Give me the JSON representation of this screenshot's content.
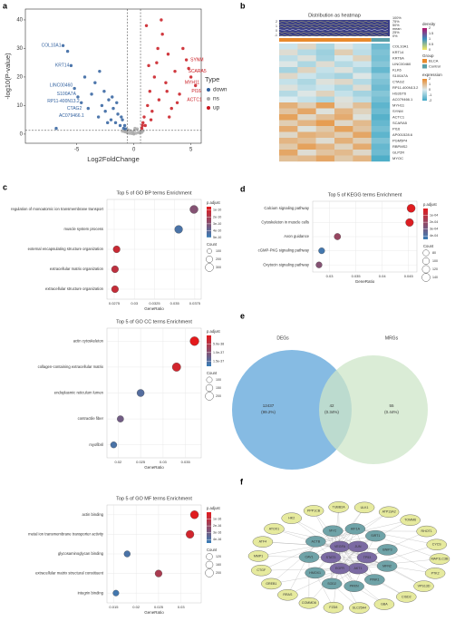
{
  "chart_data": [
    {
      "type": "scatter",
      "panel_label": "a",
      "xlabel": "Log2FoldChange",
      "ylabel": "-log10(P-value)",
      "xlim": [
        -9.5,
        5.9
      ],
      "ylim": [
        -3.2,
        43.8
      ],
      "xticks": [
        -5,
        0,
        5
      ],
      "yticks": [
        0,
        10,
        20,
        30,
        40
      ],
      "vlines": [
        -0.585,
        0.585
      ],
      "hline": 1.3,
      "legend_title": "Type",
      "series": [
        {
          "name": "down",
          "color": "#2f5f9e",
          "x": [
            -6.8,
            -6.2,
            -5.8,
            -5.5,
            -5.2,
            -4.9,
            -4.6,
            -4.3,
            -4.0,
            -3.7,
            -3.4,
            -3.1,
            -2.8,
            -2.5,
            -2.2,
            -2.0,
            -1.8,
            -1.6,
            -1.4,
            -1.2,
            -1.0,
            -0.9,
            -0.8,
            -0.7,
            -3.0,
            -2.6,
            -2.3,
            -1.9,
            -1.5,
            -1.1
          ],
          "values": [
            2,
            31,
            29,
            24,
            16,
            13,
            11,
            20,
            9,
            14,
            18,
            6,
            10,
            8,
            12,
            5,
            9,
            4,
            7,
            3,
            5,
            2,
            3,
            1.8,
            22,
            15,
            4,
            13,
            11,
            6
          ]
        },
        {
          "name": "ns",
          "color": "#aaaaaa",
          "x": [
            -1,
            -0.8,
            -0.6,
            -0.4,
            -0.2,
            0,
            0.2,
            0.4,
            0.6,
            0.8,
            -0.5,
            0.1,
            0.3,
            -0.3,
            0.5,
            -0.1,
            0.05,
            -0.7,
            0.7,
            0.0
          ],
          "values": [
            1,
            0.8,
            0.5,
            0.3,
            0.2,
            0.1,
            0.3,
            0.6,
            0.9,
            1.1,
            1.5,
            2,
            1.8,
            1.2,
            0.4,
            0.7,
            1.3,
            0.9,
            0.6,
            0.05
          ]
        },
        {
          "name": "up",
          "color": "#c8161d",
          "x": [
            0.7,
            0.8,
            0.9,
            1.0,
            1.2,
            1.4,
            1.6,
            1.8,
            2.0,
            2.2,
            2.5,
            2.8,
            3.0,
            3.3,
            3.6,
            4.0,
            4.3,
            4.6,
            5.0,
            5.4,
            1.1,
            1.5,
            2.4,
            3.1,
            3.8,
            0.75,
            1.3,
            2.1,
            2.9,
            4.8
          ],
          "values": [
            2,
            4,
            6,
            3,
            10,
            15,
            8,
            20,
            25,
            12,
            35,
            18,
            28,
            9,
            22,
            14,
            30,
            26,
            20,
            17,
            38,
            5,
            40,
            6,
            11,
            3,
            24,
            30,
            15,
            23
          ]
        }
      ],
      "annotations": [
        {
          "label": "COL10A1",
          "x": -6.2,
          "y": 31
        },
        {
          "label": "KRT14",
          "x": -5.5,
          "y": 24
        },
        {
          "label": "LINC00460",
          "x": -5.2,
          "y": 17
        },
        {
          "label": "S100A7A",
          "x": -4.9,
          "y": 14
        },
        {
          "label": "RP11-400N13.2",
          "x": -4.6,
          "y": 11.5
        },
        {
          "label": "CTAG2",
          "x": -4.4,
          "y": 9
        },
        {
          "label": "AC079466.1",
          "x": -4.2,
          "y": 6.5
        },
        {
          "label": "SYNM",
          "x": 4.8,
          "y": 26
        },
        {
          "label": "SCARA5",
          "x": 4.6,
          "y": 22
        },
        {
          "label": "MYH11",
          "x": 4.3,
          "y": 18
        },
        {
          "label": "PI16",
          "x": 4.9,
          "y": 15
        },
        {
          "label": "ACTC1",
          "x": 4.5,
          "y": 12
        }
      ]
    },
    {
      "type": "heatmap",
      "panel_label": "b",
      "title": "Distribution as heatmap",
      "dist_labels": [
        "100%",
        "75%",
        "50%",
        "mean",
        "25%",
        "0%"
      ],
      "dist_yticks": [
        2,
        1,
        0,
        -1
      ],
      "rows": [
        "COL10A1",
        "KRT14",
        "KRT6A",
        "LINC00460",
        "KLK6",
        "S100A7A",
        "CTAG2",
        "RP11-400N13.2",
        "HS3ST6",
        "AC079466.1",
        "MYH11",
        "SYNM",
        "ACTC1",
        "SCARA5",
        "PI16",
        "AP001528.6",
        "PGM5P4",
        "RBPMS2",
        "GLP2R",
        "MYOC"
      ],
      "values": [
        [
          -0.2,
          0.4,
          -0.6,
          0.1,
          -0.3,
          -1.4
        ],
        [
          0.3,
          -0.5,
          -0.8,
          0.6,
          -0.4,
          -1.2
        ],
        [
          -0.4,
          0.2,
          -0.7,
          -0.1,
          0.5,
          -1.3
        ],
        [
          0.1,
          -0.6,
          0.3,
          -0.5,
          -0.2,
          -1.1
        ],
        [
          -0.7,
          0.5,
          -0.3,
          0.2,
          -0.6,
          -1.5
        ],
        [
          0.4,
          -0.2,
          -0.5,
          -0.7,
          0.1,
          -1.0
        ],
        [
          -0.3,
          -0.6,
          0.2,
          0.4,
          -0.5,
          -1.2
        ],
        [
          0.2,
          -0.4,
          -0.2,
          -0.6,
          0.3,
          -1.4
        ],
        [
          -0.5,
          0.1,
          0.5,
          -0.3,
          -0.7,
          -1.1
        ],
        [
          0.0,
          -0.3,
          -0.6,
          0.2,
          -0.4,
          -1.3
        ],
        [
          1.2,
          0.6,
          1.5,
          0.3,
          0.9,
          -1.6
        ],
        [
          0.8,
          1.4,
          0.2,
          1.1,
          0.5,
          -1.4
        ],
        [
          1.5,
          0.4,
          0.9,
          1.3,
          0.2,
          -1.7
        ],
        [
          0.6,
          1.1,
          1.6,
          0.4,
          1.0,
          -1.5
        ],
        [
          1.3,
          0.2,
          0.7,
          1.5,
          0.8,
          -1.3
        ],
        [
          0.4,
          1.2,
          1.0,
          0.6,
          1.4,
          -1.6
        ],
        [
          1.1,
          0.9,
          0.3,
          1.2,
          0.6,
          -1.2
        ],
        [
          0.7,
          1.5,
          1.1,
          0.5,
          1.3,
          -1.5
        ],
        [
          1.4,
          0.3,
          0.8,
          1.0,
          0.4,
          -1.4
        ],
        [
          0.9,
          1.0,
          1.4,
          0.7,
          1.1,
          -1.8
        ]
      ],
      "clim": [
        -2,
        2
      ],
      "colors": [
        "#3fa7c4",
        "#dcebef",
        "#e8892b"
      ],
      "density_title": "density",
      "density_ticks": [
        2,
        1.5,
        1,
        0.5,
        0
      ],
      "density_colors": [
        "#b0116b",
        "#3a8fbf",
        "#f5e960"
      ],
      "group_title": "Group",
      "groups": [
        {
          "name": "BLCA",
          "color": "#e98a2c",
          "n": 5
        },
        {
          "name": "Control",
          "color": "#5a9fa8",
          "n": 1
        }
      ],
      "expression_title": "expression",
      "expression_ticks": [
        2,
        1,
        0,
        -1,
        -2
      ]
    },
    {
      "type": "dotplot",
      "panel_label": "c",
      "title": "Top 5 of GO BP terms Enrichment",
      "xlabel": "GeneRatio",
      "categories": [
        "regulation of monoatomic ion transmembrane transport",
        "muscle system process",
        "external encapsulating structure organization",
        "extracellular matrix organization",
        "extracellular structure organization"
      ],
      "values": [
        0.0374,
        0.0355,
        0.0278,
        0.0276,
        0.0276
      ],
      "sizes": [
        300,
        280,
        220,
        220,
        220
      ],
      "color_values": [
        3e-10,
        4.5e-10,
        1.2e-10,
        1.5e-10,
        1.3e-10
      ],
      "xlim": [
        0.0266,
        0.0383
      ],
      "xticks": [
        0.0275,
        0.03,
        0.0325,
        0.035,
        0.0375
      ],
      "color_title": "p.adjust",
      "clim": [
        5e-11,
        5e-10
      ],
      "colors": [
        "#e41a1c",
        "#377eb8"
      ],
      "color_ticks": [
        {
          "value": 1e-10,
          "label": "1e-10"
        },
        {
          "value": 2e-10,
          "label": "2e-10"
        },
        {
          "value": 3e-10,
          "label": "3e-10"
        },
        {
          "value": 4e-10,
          "label": "4e-10"
        },
        {
          "value": 5e-10,
          "label": "5e-10"
        }
      ],
      "size_title": "Count",
      "size_ticks": [
        100,
        200,
        300
      ]
    },
    {
      "type": "dotplot",
      "title": "Top 5 of GO CC terms Enrichment",
      "xlabel": "GeneRatio",
      "categories": [
        "actin cytoskeleton",
        "collagen-containing extracellular matrix",
        "endoplasmic reticulum lumen",
        "contractile fiber",
        "myofibril"
      ],
      "values": [
        0.037,
        0.033,
        0.025,
        0.0205,
        0.019
      ],
      "sizes": [
        240,
        220,
        160,
        130,
        120
      ],
      "color_values": [
        1e-39,
        2e-38,
        1.5e-37,
        1.2e-37,
        1.6e-37
      ],
      "xlim": [
        0.0175,
        0.0385
      ],
      "xticks": [
        0.02,
        0.025,
        0.03,
        0.035
      ],
      "color_title": "p.adjust",
      "clim": [
        1e-39,
        1.8e-37
      ],
      "colors": [
        "#e41a1c",
        "#377eb8"
      ],
      "color_ticks": [
        {
          "value": 5e-38,
          "label": "5.0e-38"
        },
        {
          "value": 1e-37,
          "label": "1.0e-37"
        },
        {
          "value": 1.5e-37,
          "label": "1.5e-37"
        }
      ],
      "size_title": "Count",
      "size_ticks": [
        100,
        150,
        200
      ]
    },
    {
      "type": "dotplot",
      "title": "Top 5 of GO MF terms Enrichment",
      "xlabel": "GeneRatio",
      "categories": [
        "actin binding",
        "metal ion transmembrane transporter activity",
        "glycosaminoglycan binding",
        "extracellular matrix structural constituent",
        "integrin binding"
      ],
      "values": [
        0.033,
        0.032,
        0.018,
        0.025,
        0.0155
      ],
      "sizes": [
        200,
        190,
        120,
        150,
        110
      ],
      "color_values": [
        1e-17,
        5e-17,
        4e-16,
        1.5e-16,
        4.2e-16
      ],
      "xlim": [
        0.0135,
        0.0345
      ],
      "xticks": [
        0.015,
        0.02,
        0.025,
        0.03
      ],
      "color_title": "p.adjust",
      "clim": [
        0,
        4.5e-16
      ],
      "colors": [
        "#e41a1c",
        "#377eb8"
      ],
      "color_ticks": [
        {
          "value": 1e-16,
          "label": "1e-16"
        },
        {
          "value": 2e-16,
          "label": "2e-16"
        },
        {
          "value": 3e-16,
          "label": "3e-16"
        },
        {
          "value": 4e-16,
          "label": "4e-16"
        }
      ],
      "size_title": "Count",
      "size_ticks": [
        120,
        160,
        200
      ]
    },
    {
      "type": "dotplot",
      "panel_label": "d",
      "title": "Top 5 of KEGG terms Enrichment",
      "xlabel": "GeneRatio",
      "categories": [
        "Calcium signaling pathway",
        "Cytoskeleton in muscle cells",
        "Axon guidance",
        "cGMP-PKG signaling pathway",
        "Oxytocin signaling pathway"
      ],
      "values": [
        0.0455,
        0.0452,
        0.0315,
        0.0285,
        0.028
      ],
      "sizes": [
        140,
        130,
        90,
        80,
        80
      ],
      "color_values": [
        1e-05,
        2e-05,
        0.0002,
        0.00042,
        0.00025
      ],
      "xlim": [
        0.0268,
        0.0466
      ],
      "xticks": [
        0.03,
        0.035,
        0.04,
        0.045
      ],
      "color_title": "p.adjust",
      "clim": [
        0,
        0.00045
      ],
      "colors": [
        "#e41a1c",
        "#377eb8"
      ],
      "color_ticks": [
        {
          "value": 0.0001,
          "label": "1e-04"
        },
        {
          "value": 0.0002,
          "label": "2e-04"
        },
        {
          "value": 0.0003,
          "label": "3e-04"
        },
        {
          "value": 0.0004,
          "label": "4e-04"
        }
      ],
      "size_title": "Count",
      "size_ticks": [
        80,
        100,
        120,
        140
      ]
    },
    {
      "type": "venn",
      "panel_label": "e",
      "sets": [
        {
          "name": "DEGs",
          "color": "#5ea4da"
        },
        {
          "name": "MRGs",
          "color": "#cde6c8"
        }
      ],
      "values": [
        12437,
        42,
        55
      ],
      "value_labels": [
        "(99.2%)",
        "(0.34%)",
        "(0.44%)"
      ]
    },
    {
      "type": "network",
      "panel_label": "f",
      "tiers": [
        {
          "color": "#7b6aa3",
          "nodes": [
            "TP53",
            "AKT1",
            "EGFR",
            "STAT3",
            "VEGFA",
            "JUN"
          ]
        },
        {
          "color": "#6fa3a8",
          "nodes": [
            "MFN2",
            "PINK1",
            "PRKN",
            "SOD2",
            "HMOX1",
            "CAV1",
            "ACTB",
            "MYC",
            "HIF1A",
            "SIRT1",
            "BNIP3"
          ]
        },
        {
          "color": "#e6ea9e",
          "nodes": [
            "VPS13D",
            "CISD2",
            "GBA",
            "SLC25A4",
            "FZD8",
            "COMMD6",
            "RRAS",
            "GREB1",
            "CTGF",
            "MMP1",
            "ATF4",
            "ATOX1",
            "HK2",
            "PPP1CB",
            "TUBB2A",
            "ULK1",
            "ATP13A2",
            "TOMM6",
            "RHOT1",
            "CYCS",
            "MAP1LC3B",
            "PTK2"
          ]
        }
      ]
    }
  ]
}
